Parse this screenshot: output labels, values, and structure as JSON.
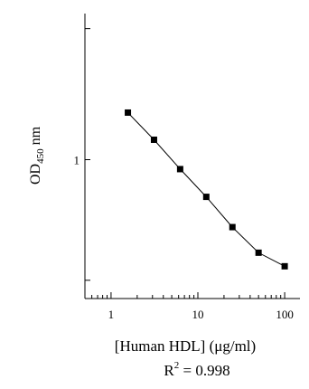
{
  "chart_data": {
    "type": "scatter",
    "x_scale": "log",
    "y_scale": "log",
    "xlim": [
      0.5,
      150
    ],
    "ylim": [
      0.25,
      4.3
    ],
    "x_ticks": [
      {
        "value": 1,
        "label": "1"
      },
      {
        "value": 10,
        "label": "10"
      },
      {
        "value": 100,
        "label": "100"
      }
    ],
    "y_ticks": [
      {
        "value": 0.3,
        "label": ""
      },
      {
        "value": 1,
        "label": "1"
      },
      {
        "value": 3.7,
        "label": ""
      }
    ],
    "series": [
      {
        "x": [
          1.5625,
          3.125,
          6.25,
          12.5,
          25,
          50,
          100
        ],
        "y": [
          1.6,
          1.22,
          0.91,
          0.69,
          0.51,
          0.395,
          0.345
        ],
        "marker": "square",
        "line": "solid",
        "color": "#000000"
      }
    ],
    "xlabel": "[Human HDL] (μg/ml)",
    "ylabel_main": "OD",
    "ylabel_sub": "450",
    "ylabel_unit": " nm",
    "annotation_prefix": "R",
    "annotation_sup": "2",
    "annotation_value": " = 0.998",
    "grid": false
  }
}
